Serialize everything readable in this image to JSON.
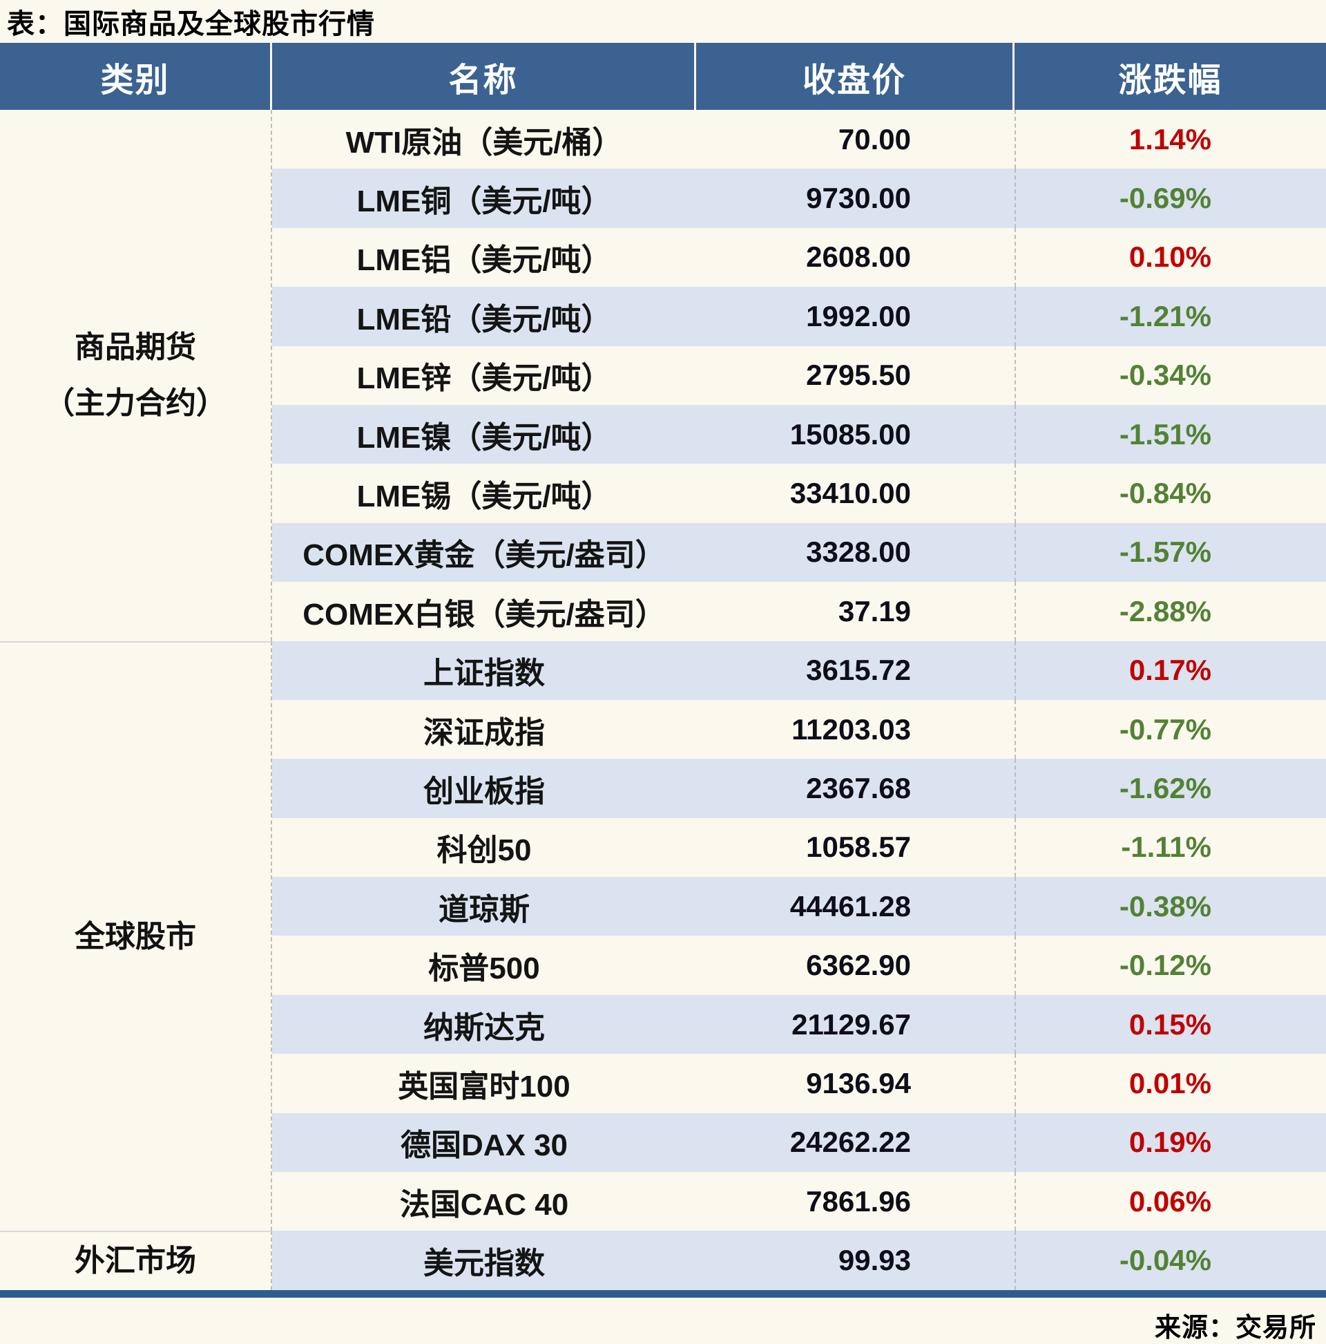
{
  "title": "表：国际商品及全球股市行情",
  "source": "来源：交易所",
  "columns": [
    "类别",
    "名称",
    "收盘价",
    "涨跌幅"
  ],
  "colors": {
    "header_bg": "#3b6291",
    "header_text": "#ffffff",
    "row_alt_bg": "#dae3ef",
    "page_bg": "#fbf8ee",
    "up_text": "#c00000",
    "down_text": "#538135",
    "bottom_bar": "#2e5d8d"
  },
  "categories": [
    {
      "label_lines": [
        "商品期货",
        "（主力合约）"
      ],
      "rows": 9
    },
    {
      "label_lines": [
        "全球股市"
      ],
      "rows": 10
    },
    {
      "label_lines": [
        "外汇市场"
      ],
      "rows": 1
    }
  ],
  "rows": [
    {
      "name": "WTI原油（美元/桶）",
      "close": "70.00",
      "change": "1.14%",
      "dir": "up"
    },
    {
      "name": "LME铜（美元/吨）",
      "close": "9730.00",
      "change": "-0.69%",
      "dir": "down"
    },
    {
      "name": "LME铝（美元/吨）",
      "close": "2608.00",
      "change": "0.10%",
      "dir": "up"
    },
    {
      "name": "LME铅（美元/吨）",
      "close": "1992.00",
      "change": "-1.21%",
      "dir": "down"
    },
    {
      "name": "LME锌（美元/吨）",
      "close": "2795.50",
      "change": "-0.34%",
      "dir": "down"
    },
    {
      "name": "LME镍（美元/吨）",
      "close": "15085.00",
      "change": "-1.51%",
      "dir": "down"
    },
    {
      "name": "LME锡（美元/吨）",
      "close": "33410.00",
      "change": "-0.84%",
      "dir": "down"
    },
    {
      "name": "COMEX黄金（美元/盎司）",
      "close": "3328.00",
      "change": "-1.57%",
      "dir": "down"
    },
    {
      "name": "COMEX白银（美元/盎司）",
      "close": "37.19",
      "change": "-2.88%",
      "dir": "down"
    },
    {
      "name": "上证指数",
      "close": "3615.72",
      "change": "0.17%",
      "dir": "up"
    },
    {
      "name": "深证成指",
      "close": "11203.03",
      "change": "-0.77%",
      "dir": "down"
    },
    {
      "name": "创业板指",
      "close": "2367.68",
      "change": "-1.62%",
      "dir": "down"
    },
    {
      "name": "科创50",
      "close": "1058.57",
      "change": "-1.11%",
      "dir": "down"
    },
    {
      "name": "道琼斯",
      "close": "44461.28",
      "change": "-0.38%",
      "dir": "down"
    },
    {
      "name": "标普500",
      "close": "6362.90",
      "change": "-0.12%",
      "dir": "down"
    },
    {
      "name": "纳斯达克",
      "close": "21129.67",
      "change": "0.15%",
      "dir": "up"
    },
    {
      "name": "英国富时100",
      "close": "9136.94",
      "change": "0.01%",
      "dir": "up"
    },
    {
      "name": "德国DAX 30",
      "close": "24262.22",
      "change": "0.19%",
      "dir": "up"
    },
    {
      "name": "法国CAC 40",
      "close": "7861.96",
      "change": "0.06%",
      "dir": "up"
    },
    {
      "name": "美元指数",
      "close": "99.93",
      "change": "-0.04%",
      "dir": "down"
    }
  ],
  "chart_data": {
    "type": "table",
    "title": "表：国际商品及全球股市行情",
    "columns": [
      "类别",
      "名称",
      "收盘价",
      "涨跌幅"
    ],
    "rows": [
      [
        "商品期货（主力合约）",
        "WTI原油（美元/桶）",
        "70.00",
        "1.14%"
      ],
      [
        "商品期货（主力合约）",
        "LME铜（美元/吨）",
        "9730.00",
        "-0.69%"
      ],
      [
        "商品期货（主力合约）",
        "LME铝（美元/吨）",
        "2608.00",
        "0.10%"
      ],
      [
        "商品期货（主力合约）",
        "LME铅（美元/吨）",
        "1992.00",
        "-1.21%"
      ],
      [
        "商品期货（主力合约）",
        "LME锌（美元/吨）",
        "2795.50",
        "-0.34%"
      ],
      [
        "商品期货（主力合约）",
        "LME镍（美元/吨）",
        "15085.00",
        "-1.51%"
      ],
      [
        "商品期货（主力合约）",
        "LME锡（美元/吨）",
        "33410.00",
        "-0.84%"
      ],
      [
        "商品期货（主力合约）",
        "COMEX黄金（美元/盎司）",
        "3328.00",
        "-1.57%"
      ],
      [
        "商品期货（主力合约）",
        "COMEX白银（美元/盎司）",
        "37.19",
        "-2.88%"
      ],
      [
        "全球股市",
        "上证指数",
        "3615.72",
        "0.17%"
      ],
      [
        "全球股市",
        "深证成指",
        "11203.03",
        "-0.77%"
      ],
      [
        "全球股市",
        "创业板指",
        "2367.68",
        "-1.62%"
      ],
      [
        "全球股市",
        "科创50",
        "1058.57",
        "-1.11%"
      ],
      [
        "全球股市",
        "道琼斯",
        "44461.28",
        "-0.38%"
      ],
      [
        "全球股市",
        "标普500",
        "6362.90",
        "-0.12%"
      ],
      [
        "全球股市",
        "纳斯达克",
        "21129.67",
        "0.15%"
      ],
      [
        "全球股市",
        "英国富时100",
        "9136.94",
        "0.01%"
      ],
      [
        "全球股市",
        "德国DAX 30",
        "24262.22",
        "0.19%"
      ],
      [
        "全球股市",
        "法国CAC 40",
        "7861.96",
        "0.06%"
      ],
      [
        "外汇市场",
        "美元指数",
        "99.93",
        "-0.04%"
      ]
    ],
    "source": "来源：交易所"
  }
}
